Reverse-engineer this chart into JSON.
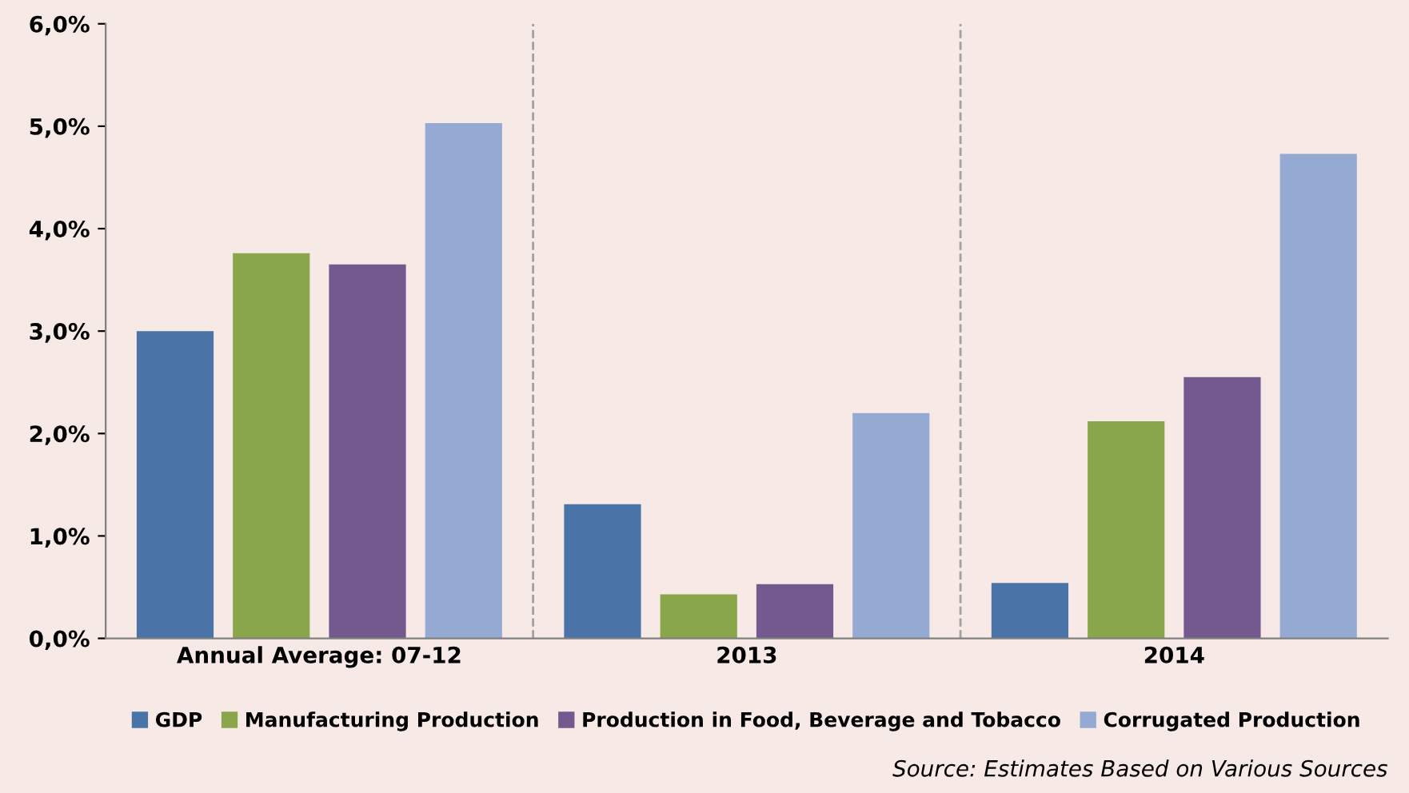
{
  "chart_data": {
    "type": "bar",
    "categories": [
      "Annual Average: 07-12",
      "2013",
      "2014"
    ],
    "series": [
      {
        "name": "GDP",
        "color": "#4a74a8",
        "values": [
          3.0,
          1.31,
          0.54
        ]
      },
      {
        "name": "Manufacturing Production",
        "color": "#89a64b",
        "values": [
          3.76,
          0.43,
          2.12
        ]
      },
      {
        "name": "Production in Food, Beverage and Tobacco",
        "color": "#73598e",
        "values": [
          3.65,
          0.53,
          2.55
        ]
      },
      {
        "name": "Corrugated Production",
        "color": "#95aad3",
        "values": [
          5.03,
          2.2,
          4.73
        ]
      }
    ],
    "ylim": [
      0,
      6
    ],
    "yticks": [
      {
        "value": 0,
        "label": "0,0%"
      },
      {
        "value": 1,
        "label": "1,0%"
      },
      {
        "value": 2,
        "label": "2,0%"
      },
      {
        "value": 3,
        "label": "3,0%"
      },
      {
        "value": 4,
        "label": "4,0%"
      },
      {
        "value": 5,
        "label": "5,0%"
      },
      {
        "value": 6,
        "label": "6,0%"
      }
    ],
    "grid": false,
    "legend": "bottom",
    "annotations": [
      "Source: Estimates Based on Various Sources"
    ]
  }
}
